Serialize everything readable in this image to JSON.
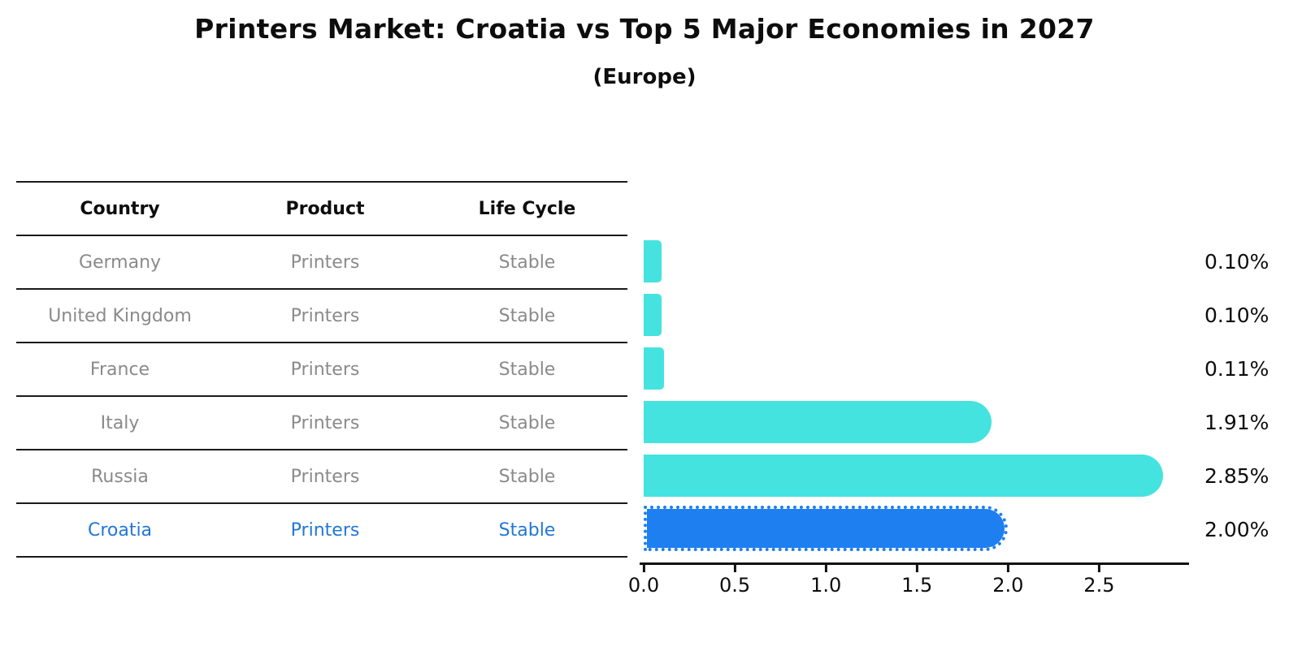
{
  "title": "Printers Market: Croatia vs Top 5 Major Economies in 2027",
  "subtitle": "(Europe)",
  "table": {
    "headers": {
      "country": "Country",
      "product": "Product",
      "life_cycle": "Life Cycle"
    },
    "rows": [
      {
        "country": "Germany",
        "product": "Printers",
        "life_cycle": "Stable"
      },
      {
        "country": "United Kingdom",
        "product": "Printers",
        "life_cycle": "Stable"
      },
      {
        "country": "France",
        "product": "Printers",
        "life_cycle": "Stable"
      },
      {
        "country": "Italy",
        "product": "Printers",
        "life_cycle": "Stable"
      },
      {
        "country": "Russia",
        "product": "Printers",
        "life_cycle": "Stable"
      },
      {
        "country": "Croatia",
        "product": "Printers",
        "life_cycle": "Stable"
      }
    ]
  },
  "chart_data": {
    "type": "bar",
    "orientation": "horizontal",
    "title": "Printers Market: Croatia vs Top 5 Major Economies in 2027",
    "subtitle": "(Europe)",
    "categories": [
      "Germany",
      "United Kingdom",
      "France",
      "Italy",
      "Russia",
      "Croatia"
    ],
    "values": [
      0.1,
      0.1,
      0.11,
      1.91,
      2.85,
      2.0
    ],
    "value_labels": [
      "0.10%",
      "0.10%",
      "0.11%",
      "1.91%",
      "2.85%",
      "2.00%"
    ],
    "x_ticks": [
      0.0,
      0.5,
      1.0,
      1.5,
      2.0,
      2.5
    ],
    "x_tick_labels": [
      "0.0",
      "0.5",
      "1.0",
      "1.5",
      "2.0",
      "2.5"
    ],
    "xlim": [
      0,
      2.98
    ],
    "grid": false,
    "legend": "none",
    "highlight_index": 5,
    "colors": {
      "bar": "#44E3E0",
      "highlight_bar": "#1E7FF0",
      "highlight_text": "#2277D4",
      "row_text": "#8A8A8A",
      "axis": "#111111"
    }
  }
}
